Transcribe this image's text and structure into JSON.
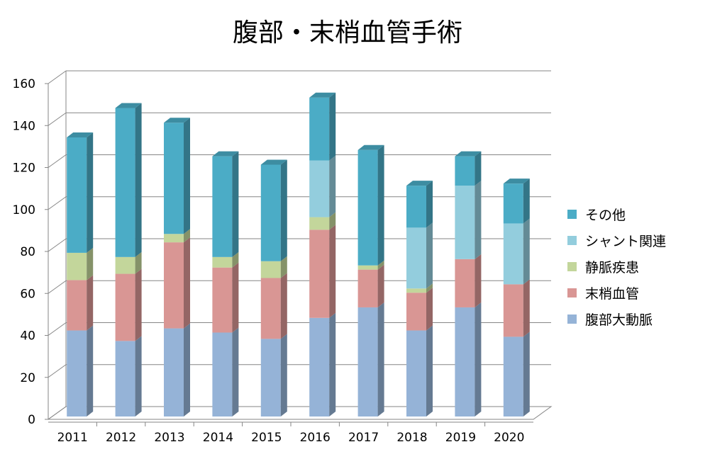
{
  "chart_data": {
    "type": "bar",
    "stacked": true,
    "three_d": true,
    "title": "腹部・末梢血管手術",
    "xlabel": "",
    "ylabel": "",
    "ylim": [
      0,
      160
    ],
    "yticks": [
      0,
      20,
      40,
      60,
      80,
      100,
      120,
      140,
      160
    ],
    "grid": true,
    "legend_position": "right",
    "categories": [
      "2011",
      "2012",
      "2013",
      "2014",
      "2015",
      "2016",
      "2017",
      "2018",
      "2019",
      "2020"
    ],
    "series": [
      {
        "name": "腹部大動脈",
        "color": "#95b3d7",
        "values": [
          41,
          36,
          42,
          40,
          37,
          47,
          52,
          41,
          52,
          38
        ]
      },
      {
        "name": "末梢血管",
        "color": "#d99694",
        "values": [
          24,
          32,
          41,
          31,
          29,
          42,
          18,
          18,
          23,
          25
        ]
      },
      {
        "name": "静脈疾患",
        "color": "#c3d69b",
        "values": [
          13,
          8,
          4,
          5,
          8,
          6,
          2,
          2,
          0,
          0
        ]
      },
      {
        "name": "シャント関連",
        "color": "#93cddd",
        "values": [
          0,
          0,
          0,
          0,
          0,
          27,
          0,
          29,
          35,
          29
        ]
      },
      {
        "name": "その他",
        "color": "#4bacc6",
        "values": [
          55,
          71,
          53,
          48,
          46,
          30,
          55,
          20,
          14,
          19
        ]
      }
    ]
  }
}
